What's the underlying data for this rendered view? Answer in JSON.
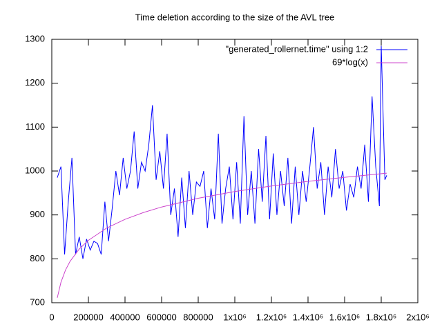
{
  "chart_data": {
    "type": "line",
    "title": "Time deletion according to the size of the AVL tree",
    "xlim": [
      0,
      2000000
    ],
    "ylim": [
      700,
      1300
    ],
    "xticks": [
      0,
      200000,
      400000,
      600000,
      800000,
      {
        "value": 1000000,
        "label": "1x10⁶"
      },
      {
        "value": 1200000,
        "label": "1.2x10⁶"
      },
      {
        "value": 1400000,
        "label": "1.4x10⁶"
      },
      {
        "value": 1600000,
        "label": "1.6x10⁶"
      },
      {
        "value": 1800000,
        "label": "1.8x10⁶"
      },
      {
        "value": 2000000,
        "label": "2x10⁶"
      }
    ],
    "yticks": [
      700,
      800,
      900,
      1000,
      1100,
      1200,
      1300
    ],
    "legend": "top right",
    "series": [
      {
        "name": "\"generated_rollernet.time\" using 1:2",
        "color": "#0000ff",
        "x": [
          30000,
          50000,
          70000,
          90000,
          110000,
          130000,
          150000,
          170000,
          190000,
          210000,
          230000,
          250000,
          270000,
          290000,
          310000,
          330000,
          350000,
          370000,
          390000,
          410000,
          430000,
          450000,
          470000,
          490000,
          510000,
          530000,
          550000,
          570000,
          590000,
          610000,
          630000,
          650000,
          670000,
          690000,
          710000,
          730000,
          750000,
          770000,
          790000,
          810000,
          830000,
          850000,
          870000,
          890000,
          910000,
          930000,
          950000,
          970000,
          990000,
          1010000,
          1030000,
          1050000,
          1070000,
          1090000,
          1110000,
          1130000,
          1150000,
          1170000,
          1190000,
          1210000,
          1230000,
          1250000,
          1270000,
          1290000,
          1310000,
          1330000,
          1350000,
          1370000,
          1390000,
          1410000,
          1430000,
          1450000,
          1470000,
          1490000,
          1510000,
          1530000,
          1550000,
          1570000,
          1590000,
          1610000,
          1630000,
          1650000,
          1670000,
          1690000,
          1710000,
          1730000,
          1750000,
          1770000,
          1790000,
          1800000,
          1820000,
          1830000
        ],
        "values": [
          985,
          1010,
          810,
          930,
          1030,
          810,
          850,
          800,
          845,
          820,
          840,
          835,
          810,
          930,
          840,
          915,
          1000,
          945,
          1030,
          960,
          1000,
          1090,
          960,
          1020,
          1000,
          1060,
          1150,
          980,
          1045,
          960,
          1085,
          900,
          960,
          850,
          985,
          870,
          1000,
          900,
          975,
          965,
          1000,
          870,
          960,
          890,
          1085,
          880,
          960,
          1010,
          890,
          1020,
          880,
          1125,
          900,
          1000,
          880,
          1050,
          930,
          1080,
          890,
          1040,
          900,
          1000,
          920,
          1030,
          880,
          1010,
          900,
          1000,
          930,
          1010,
          1100,
          960,
          1020,
          900,
          1010,
          940,
          1050,
          960,
          1000,
          910,
          970,
          940,
          1010,
          960,
          1060,
          930,
          1170,
          1010,
          920,
          1285,
          980,
          990
        ]
      },
      {
        "name": "69*log(x)",
        "color": "#cc44cc",
        "x": [
          30000,
          50000,
          75000,
          100000,
          150000,
          200000,
          300000,
          400000,
          500000,
          600000,
          800000,
          1000000,
          1200000,
          1400000,
          1600000,
          1830000
        ],
        "values": [
          711.3,
          746.6,
          774.5,
          794.4,
          822.3,
          842.2,
          870.2,
          890.0,
          905.4,
          918.0,
          937.9,
          953.3,
          965.9,
          976.5,
          985.7,
          995.0
        ]
      }
    ]
  }
}
